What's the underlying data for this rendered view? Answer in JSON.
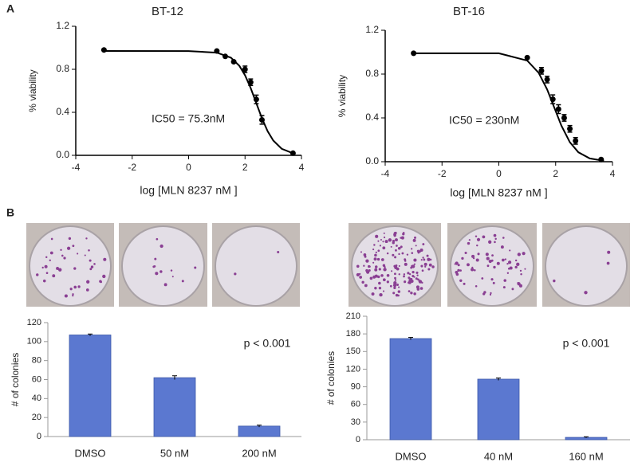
{
  "panel_labels": [
    "A",
    "B"
  ],
  "chart_data": [
    {
      "type": "line",
      "title": "BT-12",
      "x_label": "log [MLN 8237 nM ]",
      "y_label": "% viability",
      "annotation": "IC50 = 75.3nM",
      "x": [
        -3,
        1,
        1.3,
        1.6,
        2.0,
        2.2,
        2.4,
        2.6,
        3.7
      ],
      "values": [
        0.98,
        0.97,
        0.92,
        0.87,
        0.8,
        0.68,
        0.52,
        0.33,
        0.02
      ],
      "errors": [
        0,
        0,
        0,
        0,
        0.03,
        0.03,
        0.04,
        0.04,
        0
      ],
      "fit_x": [
        -3,
        0,
        1,
        1.5,
        1.8,
        2.0,
        2.2,
        2.4,
        2.6,
        2.8,
        3.0,
        3.3,
        3.7
      ],
      "fit_values": [
        0.97,
        0.969,
        0.955,
        0.908,
        0.832,
        0.745,
        0.626,
        0.485,
        0.344,
        0.225,
        0.138,
        0.061,
        0.019
      ],
      "color": "#000000",
      "xlim": [
        -4,
        4
      ],
      "xticks": [
        -4,
        -2,
        0,
        2,
        4
      ],
      "ylim": [
        0,
        1.2
      ],
      "yticks": [
        {
          "value": 0,
          "label": "0.0"
        },
        0.4,
        0.8,
        1.2
      ]
    },
    {
      "type": "line",
      "title": "BT-16",
      "x_label": "log [MLN 8237 nM ]",
      "y_label": "% viability",
      "annotation": "IC50 = 230nM",
      "x": [
        -3,
        1,
        1.5,
        1.7,
        1.9,
        2.1,
        2.3,
        2.5,
        2.7,
        3.6
      ],
      "values": [
        0.99,
        0.95,
        0.83,
        0.75,
        0.57,
        0.48,
        0.4,
        0.3,
        0.19,
        0.02
      ],
      "errors": [
        0,
        0,
        0.03,
        0.03,
        0.04,
        0.04,
        0.03,
        0.03,
        0.03,
        0
      ],
      "fit_x": [
        -3,
        0,
        1,
        1.4,
        1.7,
        1.95,
        2.2,
        2.5,
        2.8,
        3.2,
        3.7
      ],
      "fit_values": [
        0.99,
        0.99,
        0.923,
        0.812,
        0.66,
        0.495,
        0.33,
        0.178,
        0.086,
        0.03,
        0.008
      ],
      "color": "#000000",
      "xlim": [
        -4,
        4
      ],
      "xticks": [
        -4,
        -2,
        0,
        2,
        4
      ],
      "ylim": [
        0,
        1.2
      ],
      "yticks": [
        {
          "value": 0,
          "label": "0.0"
        },
        0.4,
        0.8,
        1.2
      ]
    },
    {
      "type": "bar",
      "y_label": "# of colonies",
      "annotation": "p < 0.001",
      "categories": [
        "DMSO",
        "50 nM",
        "200 nM"
      ],
      "values": [
        107,
        62,
        11
      ],
      "errors": [
        1,
        2,
        1
      ],
      "color": "#5b78d0",
      "ylim": [
        0,
        120
      ],
      "yticks": [
        0,
        20,
        40,
        60,
        80,
        100,
        120
      ]
    },
    {
      "type": "bar",
      "y_label": "# of colonies",
      "annotation": "p < 0.001",
      "categories": [
        "DMSO",
        "40 nM",
        "160 nM"
      ],
      "values": [
        172,
        103,
        4
      ],
      "errors": [
        2,
        2,
        1
      ],
      "color": "#5b78d0",
      "ylim": [
        0,
        210
      ],
      "yticks": [
        0,
        30,
        60,
        90,
        120,
        150,
        180,
        210
      ]
    }
  ]
}
